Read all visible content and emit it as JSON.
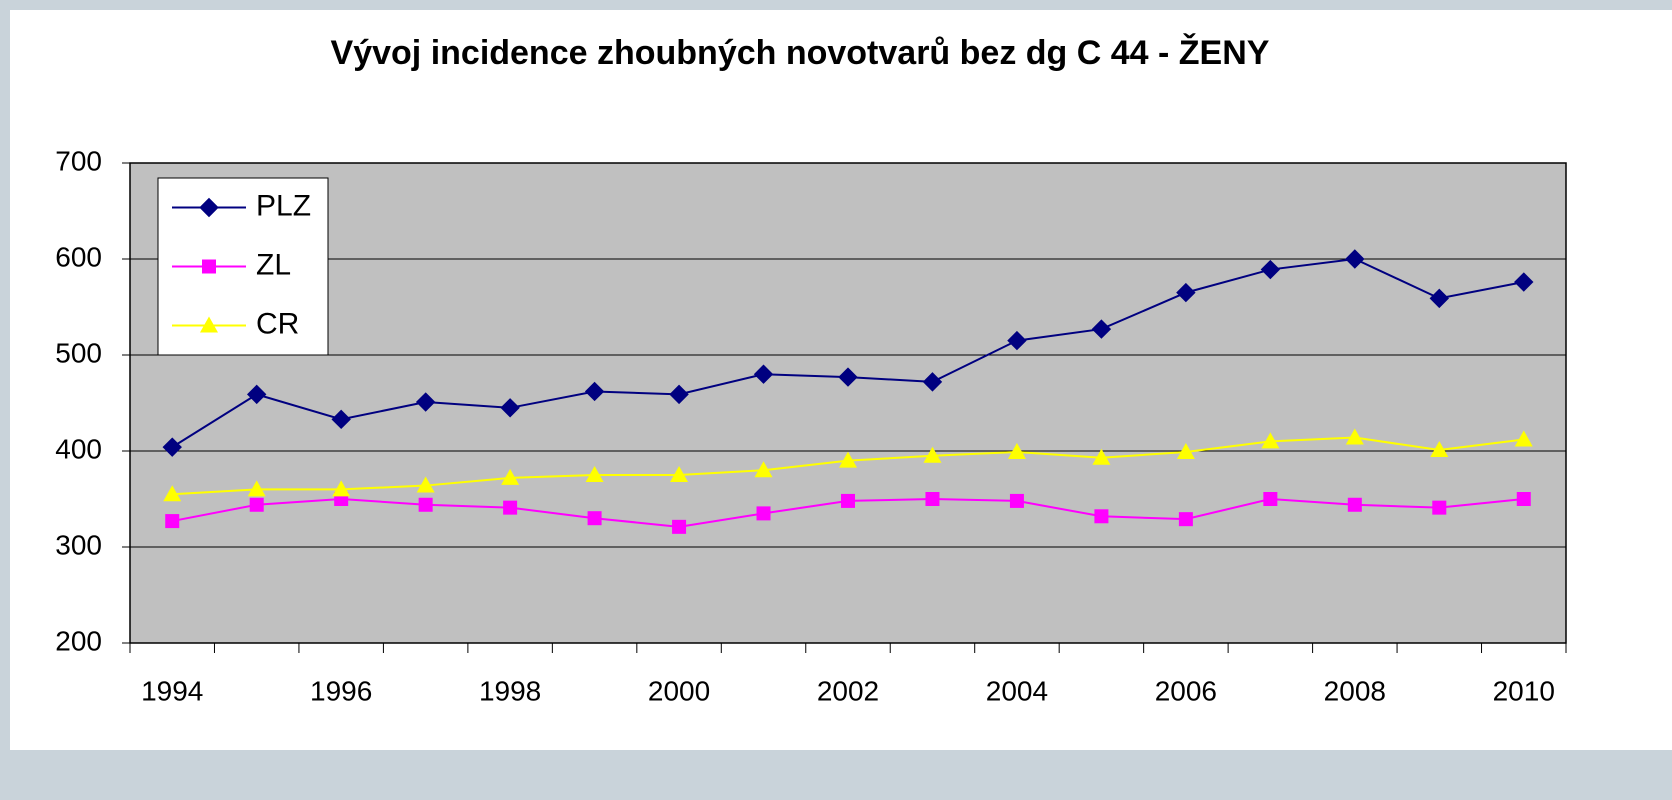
{
  "chart_data": {
    "type": "line",
    "title": "Vývoj incidence zhoubných novotvarů bez dg C 44 - ŽENY",
    "categories": [
      "1994",
      null,
      "1996",
      null,
      "1998",
      null,
      "2000",
      null,
      "2002",
      null,
      "2004",
      null,
      "2006",
      null,
      "2008",
      null,
      "2010"
    ],
    "series": [
      {
        "name": "PLZ",
        "color": "#000080",
        "marker": "diamond",
        "values": [
          404,
          459,
          433,
          451,
          445,
          462,
          459,
          480,
          477,
          472,
          515,
          527,
          565,
          589,
          600,
          559,
          576
        ]
      },
      {
        "name": "ZL",
        "color": "#ff00ff",
        "marker": "square",
        "values": [
          327,
          344,
          350,
          344,
          341,
          330,
          321,
          335,
          348,
          350,
          348,
          332,
          329,
          350,
          344,
          341,
          350
        ]
      },
      {
        "name": "CR",
        "color": "#ffff00",
        "marker": "triangle",
        "values": [
          355,
          360,
          360,
          364,
          372,
          375,
          375,
          380,
          390,
          395,
          399,
          393,
          399,
          410,
          414,
          401,
          412
        ]
      }
    ],
    "ylim": [
      200,
      700
    ],
    "yticks": [
      200,
      300,
      400,
      500,
      600,
      700
    ],
    "grid": true,
    "legend": "upper left"
  }
}
